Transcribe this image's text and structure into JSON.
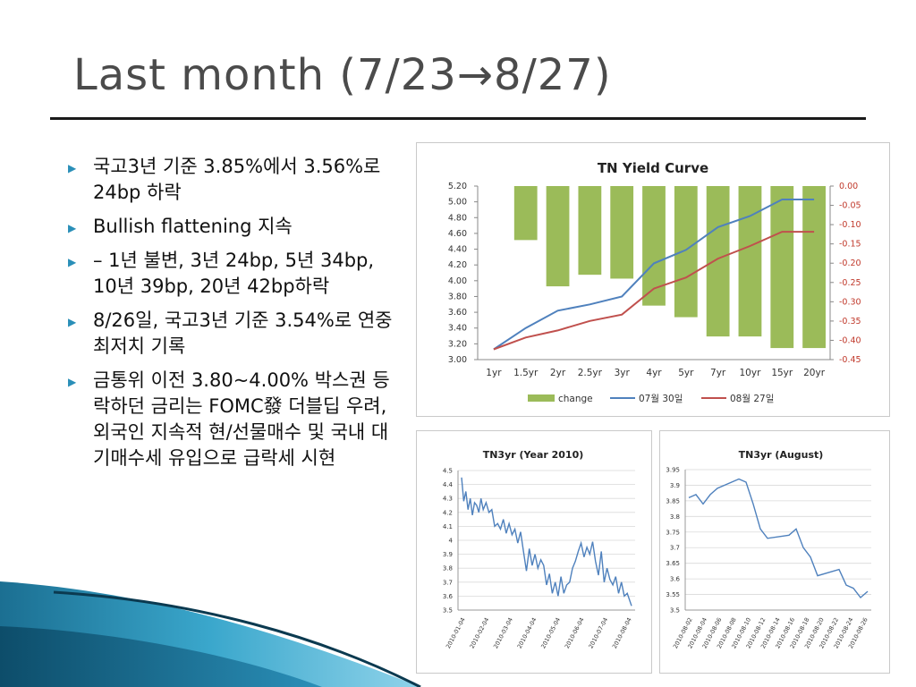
{
  "slide": {
    "title": "Last month (7/23→8/27)",
    "bullets": [
      "국고3년 기준 3.85%에서 3.56%로 24bp 하락",
      "Bullish flattening 지속",
      " – 1년 불변, 3년 24bp, 5년 34bp, 10년 39bp, 20년 42bp하락",
      "8/26일, 국고3년 기준 3.54%로 연중 최저치 기록",
      "금통위 이전 3.80~4.00% 박스권 등락하던 금리는 FOMC發 더블딥 우려, 외국인 지속적 현/선물매수 및 국내 대기매수세 유입으로 급락세 시현"
    ],
    "bullet_icon": "triangle-right-icon",
    "colors": {
      "accent": "#2a8fb8",
      "bar": "#9bbb59",
      "line_jul": "#4f81bd",
      "line_aug": "#c0504d"
    }
  },
  "chart_data": [
    {
      "type": "bar+line",
      "title": "TN Yield Curve",
      "categories": [
        "1yr",
        "1.5yr",
        "2yr",
        "2.5yr",
        "3yr",
        "4yr",
        "5yr",
        "7yr",
        "10yr",
        "15yr",
        "20yr"
      ],
      "bar_series": {
        "name": "change",
        "axis": "right",
        "values": [
          0.0,
          -0.14,
          -0.26,
          -0.23,
          -0.24,
          -0.31,
          -0.34,
          -0.39,
          -0.39,
          -0.42,
          -0.42
        ]
      },
      "line_series": [
        {
          "name": "07월 30일",
          "axis": "left",
          "values": [
            3.13,
            3.4,
            3.62,
            3.7,
            3.8,
            4.22,
            4.39,
            4.68,
            4.82,
            5.03,
            5.03
          ]
        },
        {
          "name": "08월 27일",
          "axis": "left",
          "values": [
            3.13,
            3.28,
            3.37,
            3.49,
            3.57,
            3.9,
            4.04,
            4.28,
            4.44,
            4.62,
            4.62
          ]
        }
      ],
      "y_left": {
        "min": 3.0,
        "max": 5.2,
        "ticks": [
          "5.20",
          "5.00",
          "4.80",
          "4.60",
          "4.40",
          "4.20",
          "4.00",
          "3.80",
          "3.60",
          "3.40",
          "3.20",
          "3.00"
        ]
      },
      "y_right": {
        "min": -0.45,
        "max": 0.0,
        "ticks": [
          "0.00",
          "-0.05",
          "-0.10",
          "-0.15",
          "-0.20",
          "-0.25",
          "-0.30",
          "-0.35",
          "-0.40",
          "-0.45"
        ]
      },
      "legend": [
        "change",
        "07월 30일",
        "08월 27일"
      ],
      "legend_position": "bottom",
      "grid": false
    },
    {
      "type": "line",
      "title": "TN3yr (Year 2010)",
      "x_ticks": [
        "2010-01-04",
        "2010-02-04",
        "2010-03-04",
        "2010-04-04",
        "2010-05-04",
        "2010-06-04",
        "2010-07-04",
        "2010-08-04"
      ],
      "y_ticks": [
        "4.5",
        "4.4",
        "4.3",
        "4.2",
        "4.1",
        "4",
        "3.9",
        "3.8",
        "3.7",
        "3.6",
        "3.5"
      ],
      "ylim": [
        3.5,
        4.5
      ],
      "grid": true,
      "x": [
        0,
        3,
        6,
        9,
        12,
        15,
        18,
        21,
        24,
        27,
        30,
        34,
        38,
        42,
        46,
        50,
        54,
        58,
        62,
        66,
        70,
        74,
        78,
        82,
        86,
        90,
        94,
        98,
        102,
        106,
        110,
        114,
        118,
        122,
        126,
        130,
        134,
        138,
        142,
        146,
        150,
        154,
        158,
        162,
        166,
        170,
        174,
        178,
        182,
        186,
        190,
        194,
        198,
        202,
        206,
        210,
        214,
        218,
        222,
        226,
        230,
        234,
        236
      ],
      "values": [
        4.45,
        4.28,
        4.35,
        4.22,
        4.3,
        4.18,
        4.27,
        4.25,
        4.2,
        4.3,
        4.22,
        4.27,
        4.2,
        4.22,
        4.1,
        4.12,
        4.08,
        4.15,
        4.05,
        4.12,
        4.04,
        4.08,
        3.98,
        4.06,
        3.92,
        3.78,
        3.94,
        3.82,
        3.9,
        3.8,
        3.86,
        3.82,
        3.68,
        3.76,
        3.62,
        3.7,
        3.6,
        3.74,
        3.62,
        3.68,
        3.7,
        3.8,
        3.85,
        3.92,
        3.98,
        3.88,
        3.95,
        3.9,
        3.99,
        3.85,
        3.75,
        3.92,
        3.7,
        3.8,
        3.72,
        3.68,
        3.74,
        3.62,
        3.7,
        3.6,
        3.62,
        3.56,
        3.53
      ]
    },
    {
      "type": "line",
      "title": "TN3yr (August)",
      "x_ticks": [
        "2010-08-02",
        "2010-08-04",
        "2010-08-06",
        "2010-08-08",
        "2010-08-10",
        "2010-08-12",
        "2010-08-14",
        "2010-08-16",
        "2010-08-18",
        "2010-08-20",
        "2010-08-22",
        "2010-08-24",
        "2010-08-26"
      ],
      "y_ticks": [
        "3.95",
        "3.9",
        "3.85",
        "3.8",
        "3.75",
        "3.7",
        "3.65",
        "3.6",
        "3.55",
        "3.5"
      ],
      "ylim": [
        3.5,
        3.95
      ],
      "grid": true,
      "x": [
        "2010-08-02",
        "2010-08-03",
        "2010-08-04",
        "2010-08-05",
        "2010-08-06",
        "2010-08-09",
        "2010-08-10",
        "2010-08-11",
        "2010-08-12",
        "2010-08-13",
        "2010-08-16",
        "2010-08-17",
        "2010-08-18",
        "2010-08-19",
        "2010-08-20",
        "2010-08-23",
        "2010-08-24",
        "2010-08-25",
        "2010-08-26",
        "2010-08-27"
      ],
      "values": [
        3.86,
        3.87,
        3.84,
        3.87,
        3.89,
        3.92,
        3.91,
        3.84,
        3.76,
        3.73,
        3.74,
        3.76,
        3.7,
        3.67,
        3.61,
        3.63,
        3.58,
        3.57,
        3.54,
        3.56
      ]
    }
  ]
}
